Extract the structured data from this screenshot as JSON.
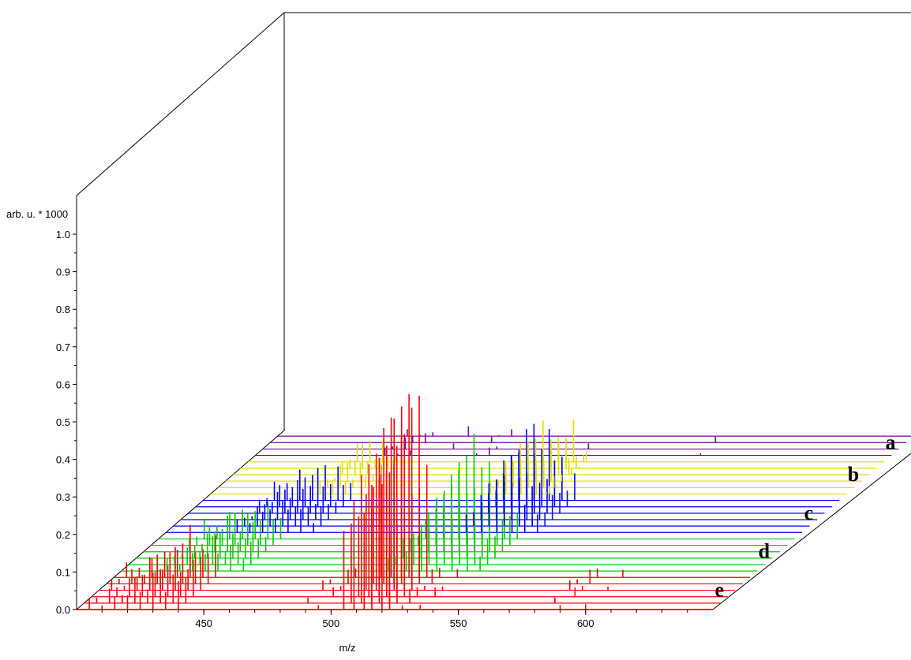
{
  "chart_data": {
    "type": "line",
    "y_axis": {
      "label": "arb. u. * 1000",
      "range": [
        0.0,
        1.0
      ],
      "ticks": [
        "0.0",
        "0.1",
        "0.2",
        "0.3",
        "0.4",
        "0.5",
        "0.6",
        "0.7",
        "0.8",
        "0.9",
        "1.0"
      ]
    },
    "x_axis": {
      "label": "m/z",
      "range": [
        400,
        650
      ],
      "ticks": [
        "450",
        "500",
        "550",
        "600"
      ]
    },
    "group_labels": [
      "a",
      "b",
      "c",
      "d",
      "e"
    ],
    "series": [
      {
        "group": "e",
        "color": "#ff0000",
        "spectra": 6,
        "peaks": [
          [
            405,
            0.04
          ],
          [
            410,
            0.05
          ],
          [
            415,
            0.06
          ],
          [
            420,
            0.1
          ],
          [
            425,
            0.09
          ],
          [
            430,
            0.14
          ],
          [
            435,
            0.1
          ],
          [
            440,
            0.12
          ],
          [
            488,
            0.03
          ],
          [
            495,
            0.04
          ],
          [
            505,
            0.3
          ],
          [
            509,
            0.45
          ],
          [
            513,
            0.38
          ],
          [
            516,
            0.52
          ],
          [
            520,
            0.5
          ],
          [
            523,
            0.3
          ],
          [
            528,
            0.05
          ],
          [
            535,
            0.03
          ],
          [
            585,
            0.03
          ],
          [
            590,
            0.04
          ],
          [
            600,
            0.02
          ]
        ]
      },
      {
        "group": "d",
        "color": "#00cc00",
        "spectra": 6,
        "peaks": [
          [
            418,
            0.05
          ],
          [
            423,
            0.06
          ],
          [
            428,
            0.08
          ],
          [
            433,
            0.11
          ],
          [
            438,
            0.09
          ],
          [
            443,
            0.1
          ],
          [
            448,
            0.08
          ],
          [
            505,
            0.06
          ],
          [
            512,
            0.12
          ],
          [
            518,
            0.2
          ],
          [
            524,
            0.28
          ],
          [
            530,
            0.23
          ],
          [
            536,
            0.18
          ],
          [
            541,
            0.1
          ]
        ]
      },
      {
        "group": "c",
        "color": "#0000ff",
        "spectra": 6,
        "peaks": [
          [
            428,
            0.05
          ],
          [
            433,
            0.07
          ],
          [
            438,
            0.09
          ],
          [
            443,
            0.1
          ],
          [
            448,
            0.11
          ],
          [
            453,
            0.09
          ],
          [
            458,
            0.07
          ],
          [
            518,
            0.08
          ],
          [
            524,
            0.16
          ],
          [
            530,
            0.22
          ],
          [
            536,
            0.19
          ],
          [
            541,
            0.14
          ],
          [
            546,
            0.08
          ]
        ]
      },
      {
        "group": "b",
        "color": "#e0e000",
        "spectra": 6,
        "peaks": [
          [
            443,
            0.05
          ],
          [
            448,
            0.08
          ],
          [
            453,
            0.06
          ],
          [
            458,
            0.05
          ],
          [
            510,
            0.07
          ],
          [
            516,
            0.11
          ],
          [
            522,
            0.09
          ],
          [
            528,
            0.12
          ],
          [
            532,
            0.05
          ],
          [
            528,
            0.06
          ],
          [
            533,
            0.03
          ]
        ]
      },
      {
        "group": "a",
        "color": "#8000a0",
        "spectra": 4,
        "peaks": [
          [
            451,
            0.03
          ],
          [
            456,
            0.04
          ],
          [
            461,
            0.03
          ],
          [
            475,
            0.03
          ],
          [
            487,
            0.03
          ],
          [
            492,
            0.03
          ],
          [
            528,
            0.02
          ],
          [
            575,
            0.02
          ]
        ]
      }
    ]
  }
}
